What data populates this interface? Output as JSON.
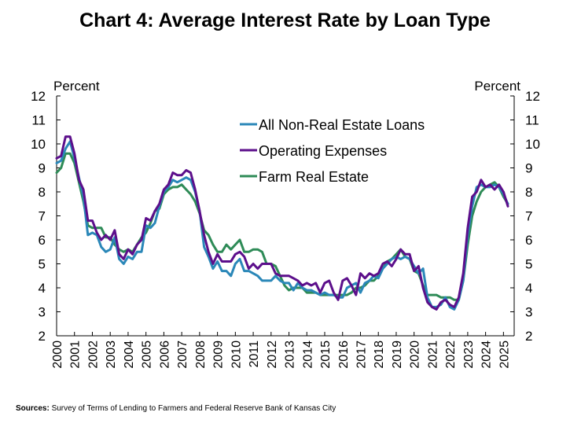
{
  "chart_data": {
    "type": "line",
    "title": "Chart 4: Average Interest Rate by Loan Type",
    "ylabel_left": "Percent",
    "ylabel_right": "Percent",
    "ylim": [
      2,
      12
    ],
    "y_ticks": [
      2,
      3,
      4,
      5,
      6,
      7,
      8,
      9,
      10,
      11,
      12
    ],
    "x_range": [
      2000,
      2025.6
    ],
    "x_ticks": [
      "2000",
      "2001",
      "2002",
      "2003",
      "2004",
      "2005",
      "2006",
      "2007",
      "2008",
      "2009",
      "2010",
      "2011",
      "2012",
      "2013",
      "2014",
      "2015",
      "2016",
      "2017",
      "2018",
      "2019",
      "2020",
      "2021",
      "2022",
      "2023",
      "2024",
      "2025"
    ],
    "grid": false,
    "legend_position": "top-center",
    "series": [
      {
        "name": "All Non-Real Estate Loans",
        "color": "#2a87b8",
        "x": [
          2000,
          2000.25,
          2000.5,
          2000.75,
          2001,
          2001.25,
          2001.5,
          2001.75,
          2002,
          2002.25,
          2002.5,
          2002.75,
          2003,
          2003.25,
          2003.5,
          2003.75,
          2004,
          2004.25,
          2004.5,
          2004.75,
          2005,
          2005.25,
          2005.5,
          2005.75,
          2006,
          2006.25,
          2006.5,
          2006.75,
          2007,
          2007.25,
          2007.5,
          2007.75,
          2008,
          2008.25,
          2008.5,
          2008.75,
          2009,
          2009.25,
          2009.5,
          2009.75,
          2010,
          2010.25,
          2010.5,
          2010.75,
          2011,
          2011.25,
          2011.5,
          2011.75,
          2012,
          2012.25,
          2012.5,
          2012.75,
          2013,
          2013.25,
          2013.5,
          2013.75,
          2014,
          2014.25,
          2014.5,
          2014.75,
          2015,
          2015.25,
          2015.5,
          2015.75,
          2016,
          2016.25,
          2016.5,
          2016.75,
          2017,
          2017.25,
          2017.5,
          2017.75,
          2018,
          2018.25,
          2018.5,
          2018.75,
          2019,
          2019.25,
          2019.5,
          2019.75,
          2020,
          2020.25,
          2020.5,
          2020.75,
          2021,
          2021.25,
          2021.5,
          2021.75,
          2022,
          2022.25,
          2022.5,
          2022.75,
          2023,
          2023.25,
          2023.5,
          2023.75,
          2024,
          2024.25,
          2024.5,
          2024.75,
          2025,
          2025.25
        ],
        "values": [
          9.2,
          9.3,
          9.8,
          10.1,
          9.4,
          8.6,
          7.8,
          6.2,
          6.3,
          6.2,
          5.7,
          5.5,
          5.6,
          6.1,
          5.2,
          5.0,
          5.3,
          5.2,
          5.5,
          5.5,
          6.6,
          6.5,
          6.7,
          7.4,
          8.0,
          8.2,
          8.5,
          8.4,
          8.5,
          8.6,
          8.5,
          8.0,
          7.2,
          5.7,
          5.3,
          4.8,
          5.1,
          4.7,
          4.7,
          4.5,
          5.0,
          5.2,
          4.7,
          4.7,
          4.6,
          4.5,
          4.3,
          4.3,
          4.3,
          4.5,
          4.3,
          4.2,
          4.2,
          3.9,
          4.2,
          4.0,
          3.9,
          3.9,
          3.8,
          3.7,
          3.8,
          3.7,
          3.7,
          3.6,
          3.6,
          4.0,
          4.1,
          4.2,
          3.8,
          4.2,
          4.3,
          4.5,
          4.4,
          4.8,
          5.0,
          5.2,
          5.3,
          5.2,
          5.3,
          5.2,
          4.9,
          4.6,
          4.8,
          3.6,
          3.2,
          3.2,
          3.3,
          3.6,
          3.2,
          3.1,
          3.5,
          4.3,
          6.2,
          7.4,
          8.2,
          8.3,
          8.2,
          8.2,
          8.3,
          8.2,
          7.9,
          7.5
        ]
      },
      {
        "name": "Operating Expenses",
        "color": "#5c0f8b",
        "x": [
          2000,
          2000.25,
          2000.5,
          2000.75,
          2001,
          2001.25,
          2001.5,
          2001.75,
          2002,
          2002.25,
          2002.5,
          2002.75,
          2003,
          2003.25,
          2003.5,
          2003.75,
          2004,
          2004.25,
          2004.5,
          2004.75,
          2005,
          2005.25,
          2005.5,
          2005.75,
          2006,
          2006.25,
          2006.5,
          2006.75,
          2007,
          2007.25,
          2007.5,
          2007.75,
          2008,
          2008.25,
          2008.5,
          2008.75,
          2009,
          2009.25,
          2009.5,
          2009.75,
          2010,
          2010.25,
          2010.5,
          2010.75,
          2011,
          2011.25,
          2011.5,
          2011.75,
          2012,
          2012.25,
          2012.5,
          2012.75,
          2013,
          2013.25,
          2013.5,
          2013.75,
          2014,
          2014.25,
          2014.5,
          2014.75,
          2015,
          2015.25,
          2015.5,
          2015.75,
          2016,
          2016.25,
          2016.5,
          2016.75,
          2017,
          2017.25,
          2017.5,
          2017.75,
          2018,
          2018.25,
          2018.5,
          2018.75,
          2019,
          2019.25,
          2019.5,
          2019.75,
          2020,
          2020.25,
          2020.5,
          2020.75,
          2021,
          2021.25,
          2021.5,
          2021.75,
          2022,
          2022.25,
          2022.5,
          2022.75,
          2023,
          2023.25,
          2023.5,
          2023.75,
          2024,
          2024.25,
          2024.5,
          2024.75,
          2025,
          2025.25
        ],
        "values": [
          9.4,
          9.5,
          10.3,
          10.3,
          9.6,
          8.5,
          8.1,
          6.8,
          6.8,
          6.3,
          6.0,
          6.2,
          6.0,
          6.4,
          5.4,
          5.2,
          5.6,
          5.4,
          5.8,
          6.0,
          6.9,
          6.8,
          7.2,
          7.5,
          8.1,
          8.3,
          8.8,
          8.7,
          8.7,
          8.9,
          8.8,
          8.1,
          7.2,
          6.2,
          5.5,
          5.0,
          5.4,
          5.1,
          5.1,
          5.1,
          5.4,
          5.5,
          5.3,
          4.8,
          5.0,
          4.8,
          5.0,
          5.0,
          5.0,
          4.6,
          4.5,
          4.5,
          4.5,
          4.4,
          4.3,
          4.1,
          4.2,
          4.1,
          4.2,
          3.8,
          4.2,
          4.3,
          3.8,
          3.5,
          4.3,
          4.4,
          4.1,
          3.7,
          4.6,
          4.4,
          4.6,
          4.5,
          4.6,
          5.0,
          5.1,
          4.9,
          5.2,
          5.6,
          5.4,
          5.4,
          4.7,
          4.9,
          4.0,
          3.4,
          3.2,
          3.1,
          3.4,
          3.5,
          3.3,
          3.2,
          3.6,
          4.6,
          6.5,
          7.8,
          8.0,
          8.5,
          8.2,
          8.3,
          8.1,
          8.3,
          8.0,
          7.4
        ]
      },
      {
        "name": "Farm Real Estate",
        "color": "#2e8b57",
        "x": [
          2000,
          2000.25,
          2000.5,
          2000.75,
          2001,
          2001.25,
          2001.5,
          2001.75,
          2002,
          2002.25,
          2002.5,
          2002.75,
          2003,
          2003.25,
          2003.5,
          2003.75,
          2004,
          2004.25,
          2004.5,
          2004.75,
          2005,
          2005.25,
          2005.5,
          2005.75,
          2006,
          2006.25,
          2006.5,
          2006.75,
          2007,
          2007.25,
          2007.5,
          2007.75,
          2008,
          2008.25,
          2008.5,
          2008.75,
          2009,
          2009.25,
          2009.5,
          2009.75,
          2010,
          2010.25,
          2010.5,
          2010.75,
          2011,
          2011.25,
          2011.5,
          2011.75,
          2012,
          2012.25,
          2012.5,
          2012.75,
          2013,
          2013.25,
          2013.5,
          2013.75,
          2014,
          2014.25,
          2014.5,
          2014.75,
          2015,
          2015.25,
          2015.5,
          2015.75,
          2016,
          2016.25,
          2016.5,
          2016.75,
          2017,
          2017.25,
          2017.5,
          2017.75,
          2018,
          2018.25,
          2018.5,
          2018.75,
          2019,
          2019.25,
          2019.5,
          2019.75,
          2020,
          2020.25,
          2020.5,
          2020.75,
          2021,
          2021.25,
          2021.5,
          2021.75,
          2022,
          2022.25,
          2022.5,
          2022.75,
          2023,
          2023.25,
          2023.5,
          2023.75,
          2024,
          2024.25,
          2024.5,
          2024.75,
          2025,
          2025.25
        ],
        "values": [
          8.8,
          9.0,
          9.6,
          9.6,
          9.2,
          8.4,
          7.6,
          6.6,
          6.5,
          6.5,
          6.5,
          6.1,
          6.1,
          5.8,
          5.6,
          5.5,
          5.6,
          5.5,
          5.8,
          6.1,
          6.3,
          6.7,
          7.2,
          7.3,
          7.9,
          8.1,
          8.2,
          8.2,
          8.3,
          8.1,
          7.9,
          7.6,
          7.1,
          6.4,
          6.2,
          5.8,
          5.5,
          5.5,
          5.8,
          5.6,
          5.8,
          6.0,
          5.5,
          5.5,
          5.6,
          5.6,
          5.5,
          5.0,
          5.0,
          4.9,
          4.5,
          4.1,
          3.9,
          4.0,
          4.0,
          4.0,
          3.8,
          3.8,
          3.8,
          3.7,
          3.7,
          3.7,
          3.7,
          3.7,
          3.7,
          3.7,
          3.8,
          4.0,
          4.0,
          4.1,
          4.3,
          4.3,
          4.5,
          4.8,
          5.1,
          5.2,
          5.4,
          5.6,
          5.3,
          5.2,
          4.7,
          4.6,
          4.1,
          3.7,
          3.7,
          3.7,
          3.6,
          3.6,
          3.6,
          3.5,
          3.5,
          4.3,
          5.8,
          7.0,
          7.6,
          8.0,
          8.2,
          8.3,
          8.4,
          8.2,
          7.8,
          7.5
        ]
      }
    ]
  },
  "sources": {
    "label": "Sources:",
    "text": " Survey of Terms of Lending to Farmers and Federal Reserve Bank of Kansas City"
  }
}
